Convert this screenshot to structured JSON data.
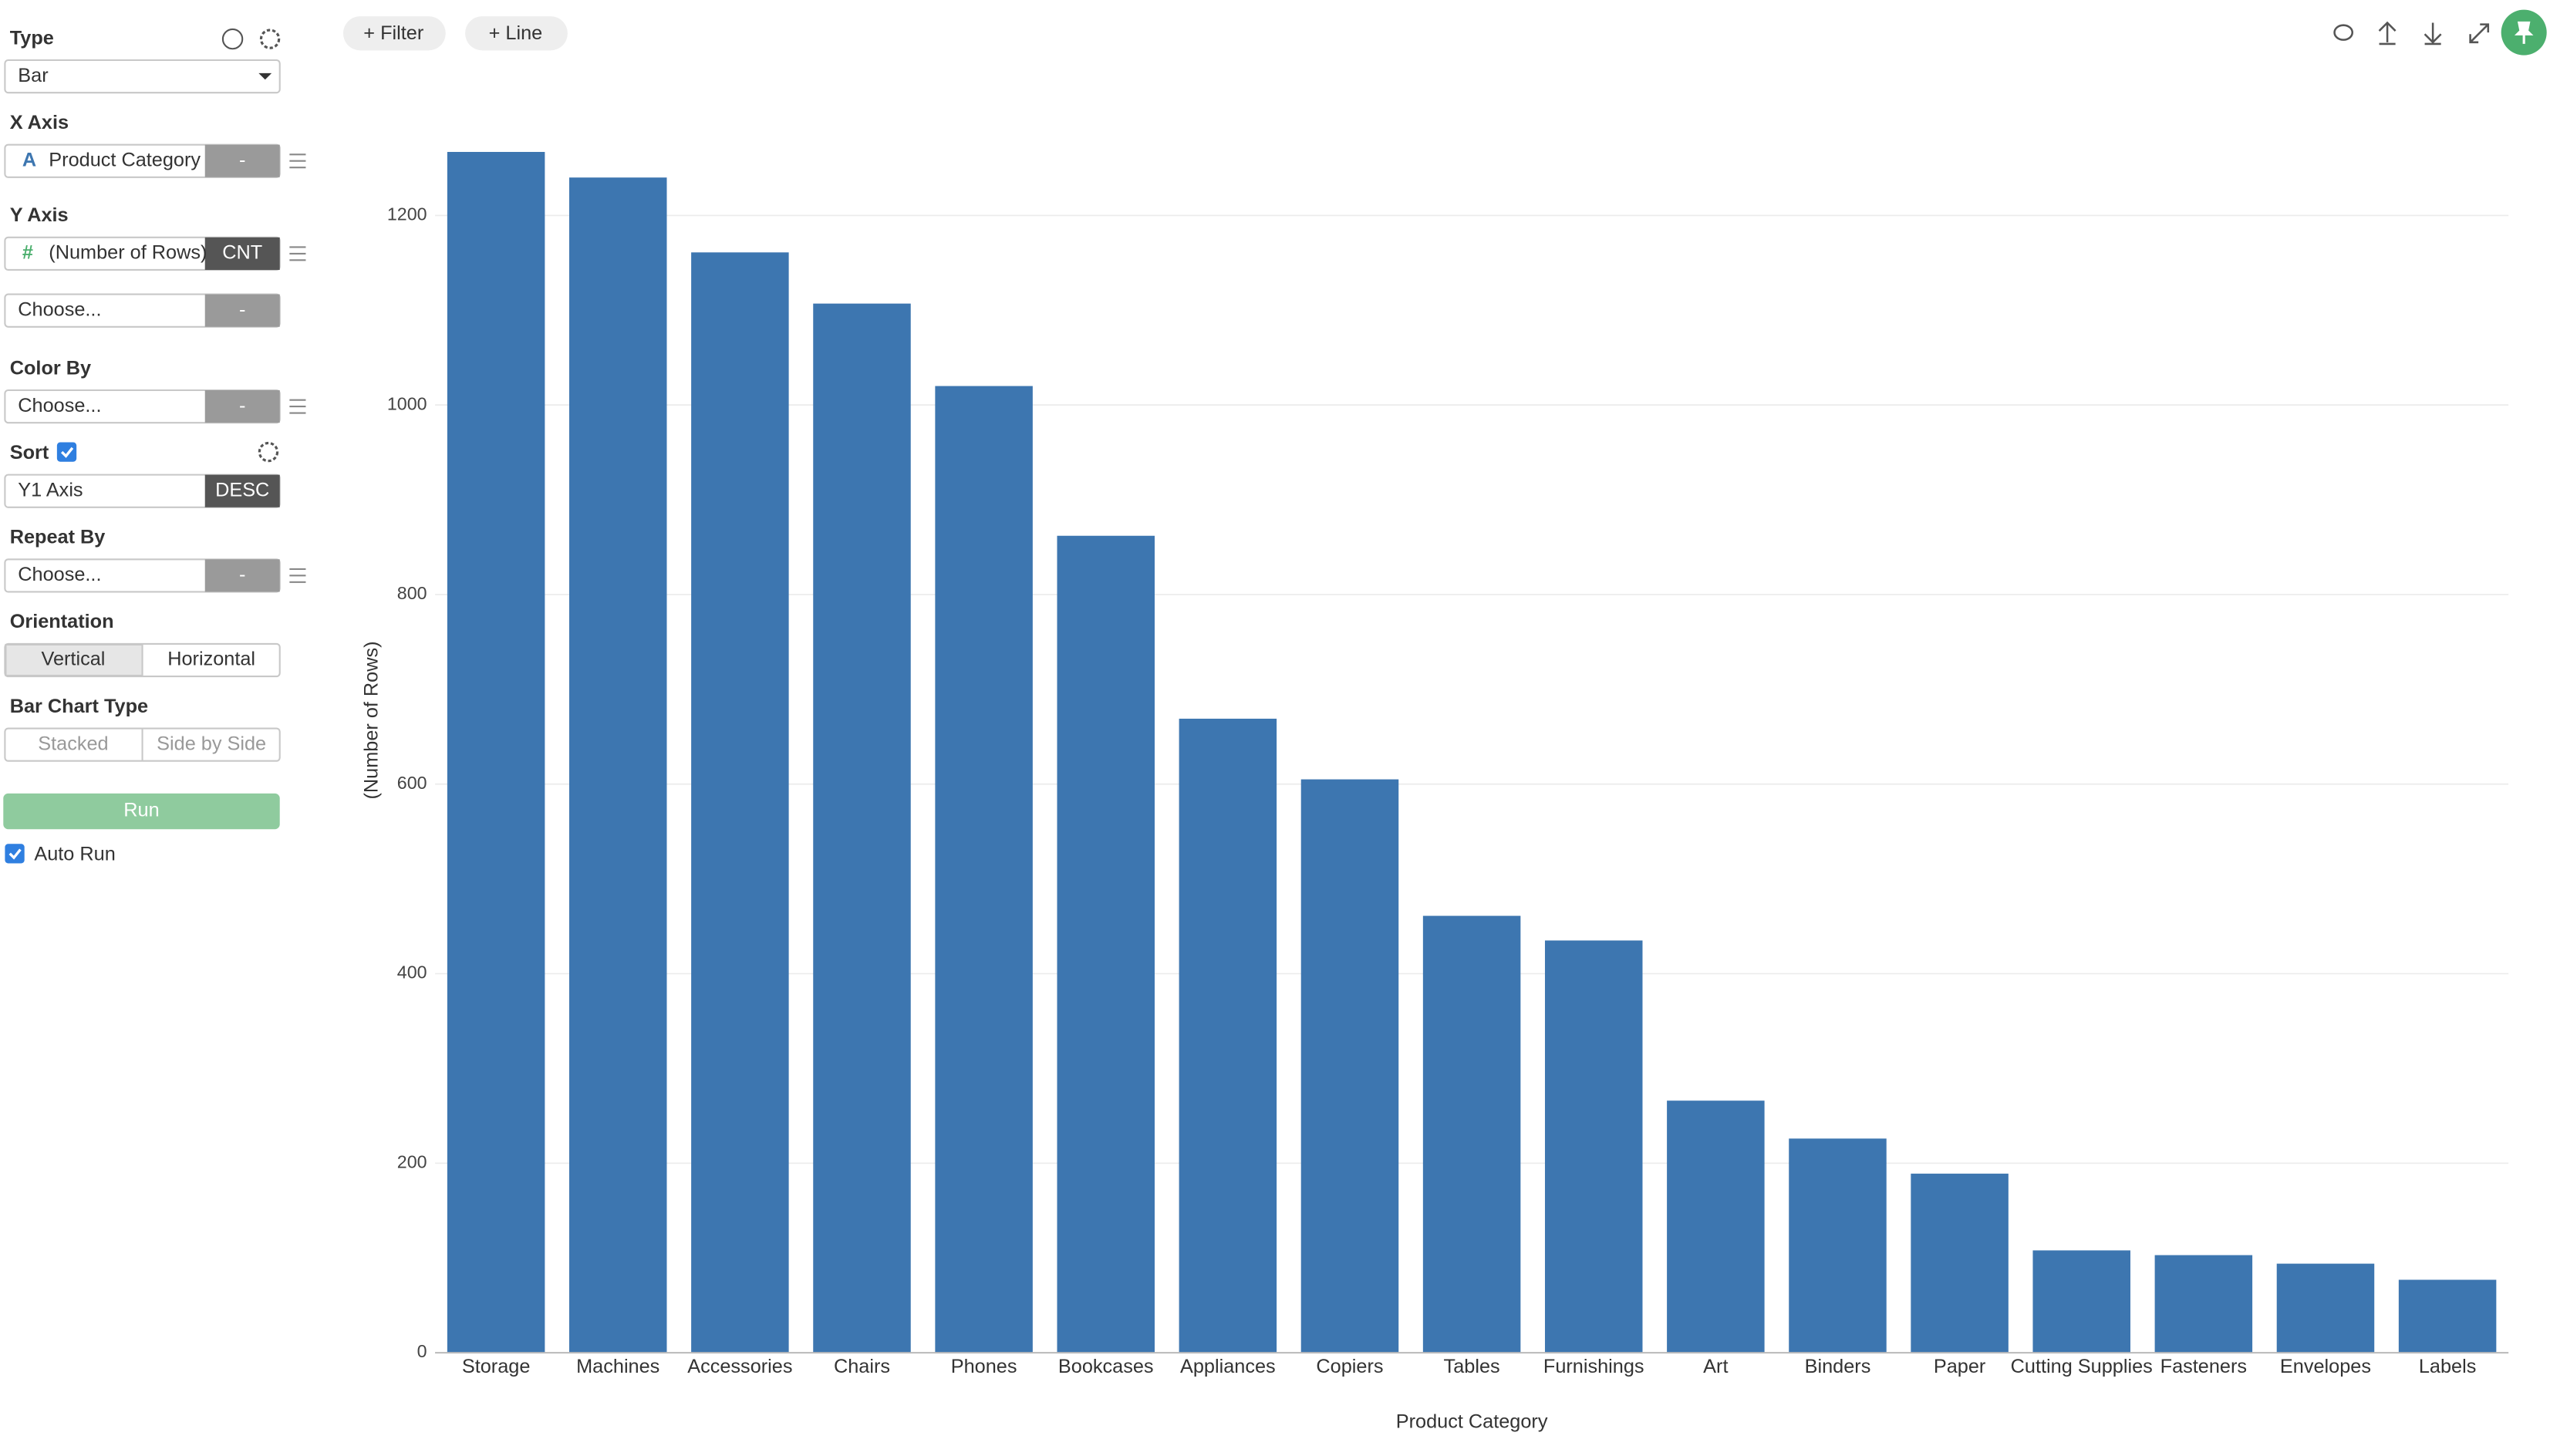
{
  "toolbar": {
    "buttons": [
      "+ Filter",
      "+ Line"
    ]
  },
  "sidebar": {
    "type": {
      "label": "Type",
      "value": "Bar"
    },
    "x_axis": {
      "label": "X Axis",
      "icon": "A",
      "field": "Product Category",
      "agg": "-"
    },
    "y_axis": {
      "label": "Y Axis",
      "icon": "#",
      "field": "(Number of Rows)",
      "agg": "CNT",
      "extra_field": "Choose...",
      "extra_agg": "-"
    },
    "color_by": {
      "label": "Color By",
      "field": "Choose...",
      "agg": "-"
    },
    "sort": {
      "label": "Sort",
      "field": "Y1 Axis",
      "order": "DESC"
    },
    "repeat_by": {
      "label": "Repeat By",
      "field": "Choose...",
      "agg": "-"
    },
    "orientation": {
      "label": "Orientation",
      "options": [
        "Vertical",
        "Horizontal"
      ]
    },
    "bar_chart_type": {
      "label": "Bar Chart Type",
      "options": [
        "Stacked",
        "Side by Side"
      ]
    },
    "run": "Run",
    "auto_run": "Auto Run"
  },
  "chart_data": {
    "type": "bar",
    "x_label": "Product Category",
    "y_label": "(Number of Rows)",
    "categories": [
      "Storage",
      "Machines",
      "Accessories",
      "Chairs",
      "Phones",
      "Bookcases",
      "Appliances",
      "Copiers",
      "Tables",
      "Furnishings",
      "Art",
      "Binders",
      "Paper",
      "Cutting Supplies",
      "Fasteners",
      "Envelopes",
      "Labels"
    ],
    "values": [
      1267,
      1240,
      1161,
      1107,
      1020,
      862,
      669,
      605,
      461,
      435,
      266,
      226,
      189,
      108,
      103,
      94,
      77
    ],
    "color": "#3d76b0",
    "ylim": [
      0,
      1320
    ],
    "yticks": [
      0,
      200,
      400,
      600,
      800,
      1000,
      1200
    ],
    "grid": true
  }
}
